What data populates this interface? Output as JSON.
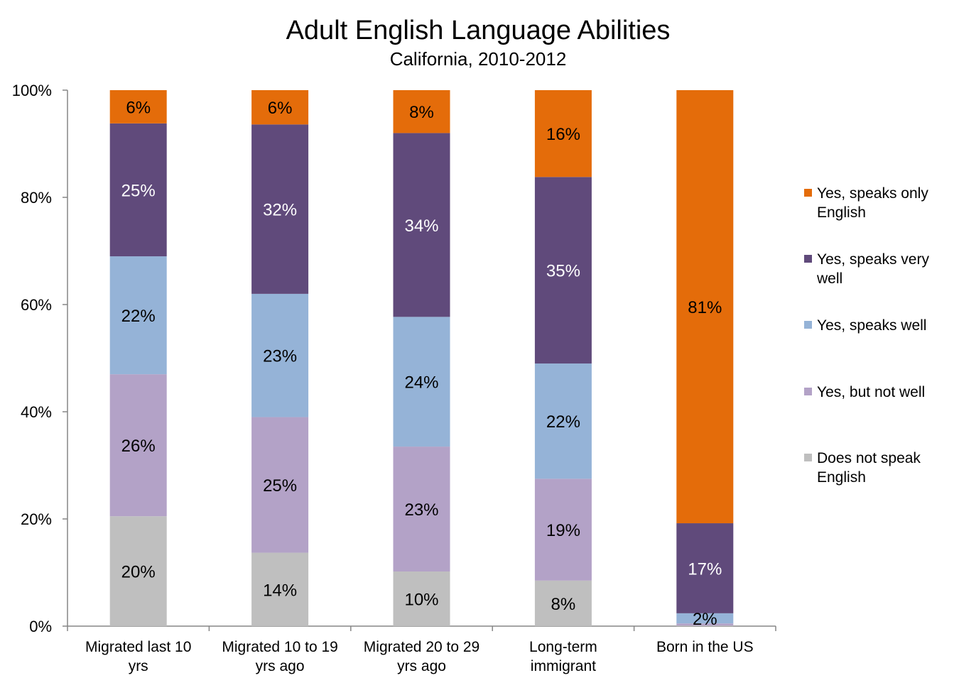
{
  "chart_data": {
    "type": "bar",
    "stacked": true,
    "title": "Adult English Language Abilities",
    "subtitle": "California, 2010-2012",
    "xlabel": "",
    "ylabel": "",
    "ylim": [
      0,
      100
    ],
    "yticks": [
      "0%",
      "20%",
      "40%",
      "60%",
      "80%",
      "100%"
    ],
    "categories": [
      [
        "Migrated last 10",
        "yrs"
      ],
      [
        "Migrated 10 to 19",
        "yrs ago"
      ],
      [
        "Migrated 20 to 29",
        "yrs ago"
      ],
      [
        "Long-term",
        "immigrant"
      ],
      [
        "Born in the US"
      ]
    ],
    "series": [
      {
        "name": "Does not speak English",
        "legend": [
          "Does not speak",
          "English"
        ],
        "color": "#BFBFBF",
        "label_color": "#000000",
        "values": [
          20.5,
          13.7,
          10.2,
          8.5,
          0.1
        ],
        "labels": [
          "20%",
          "14%",
          "10%",
          "8%",
          ""
        ]
      },
      {
        "name": "Yes, but not well",
        "legend": [
          "Yes, but not well"
        ],
        "color": "#B3A2C7",
        "label_color": "#000000",
        "values": [
          26.5,
          25.3,
          23.3,
          19.0,
          0.4
        ],
        "labels": [
          "26%",
          "25%",
          "23%",
          "19%",
          ""
        ]
      },
      {
        "name": "Yes, speaks well",
        "legend": [
          "Yes, speaks well"
        ],
        "color": "#95B3D7",
        "label_color": "#000000",
        "values": [
          22.0,
          23.0,
          24.2,
          21.5,
          1.9
        ],
        "labels": [
          "22%",
          "23%",
          "24%",
          "22%",
          "2%"
        ]
      },
      {
        "name": "Yes, speaks very well",
        "legend": [
          "Yes, speaks very",
          "well"
        ],
        "color": "#604A7B",
        "label_color": "#FFFFFF",
        "values": [
          24.8,
          31.6,
          34.3,
          34.8,
          16.8
        ],
        "labels": [
          "25%",
          "32%",
          "34%",
          "35%",
          "17%"
        ]
      },
      {
        "name": "Yes, speaks only English",
        "legend": [
          "Yes, speaks only",
          "English"
        ],
        "color": "#E46C0A",
        "label_color": "#000000",
        "values": [
          6.2,
          6.4,
          8.0,
          16.2,
          80.8
        ],
        "labels": [
          "6%",
          "6%",
          "8%",
          "16%",
          "81%"
        ]
      }
    ],
    "legend_position": "right",
    "grid": false
  }
}
